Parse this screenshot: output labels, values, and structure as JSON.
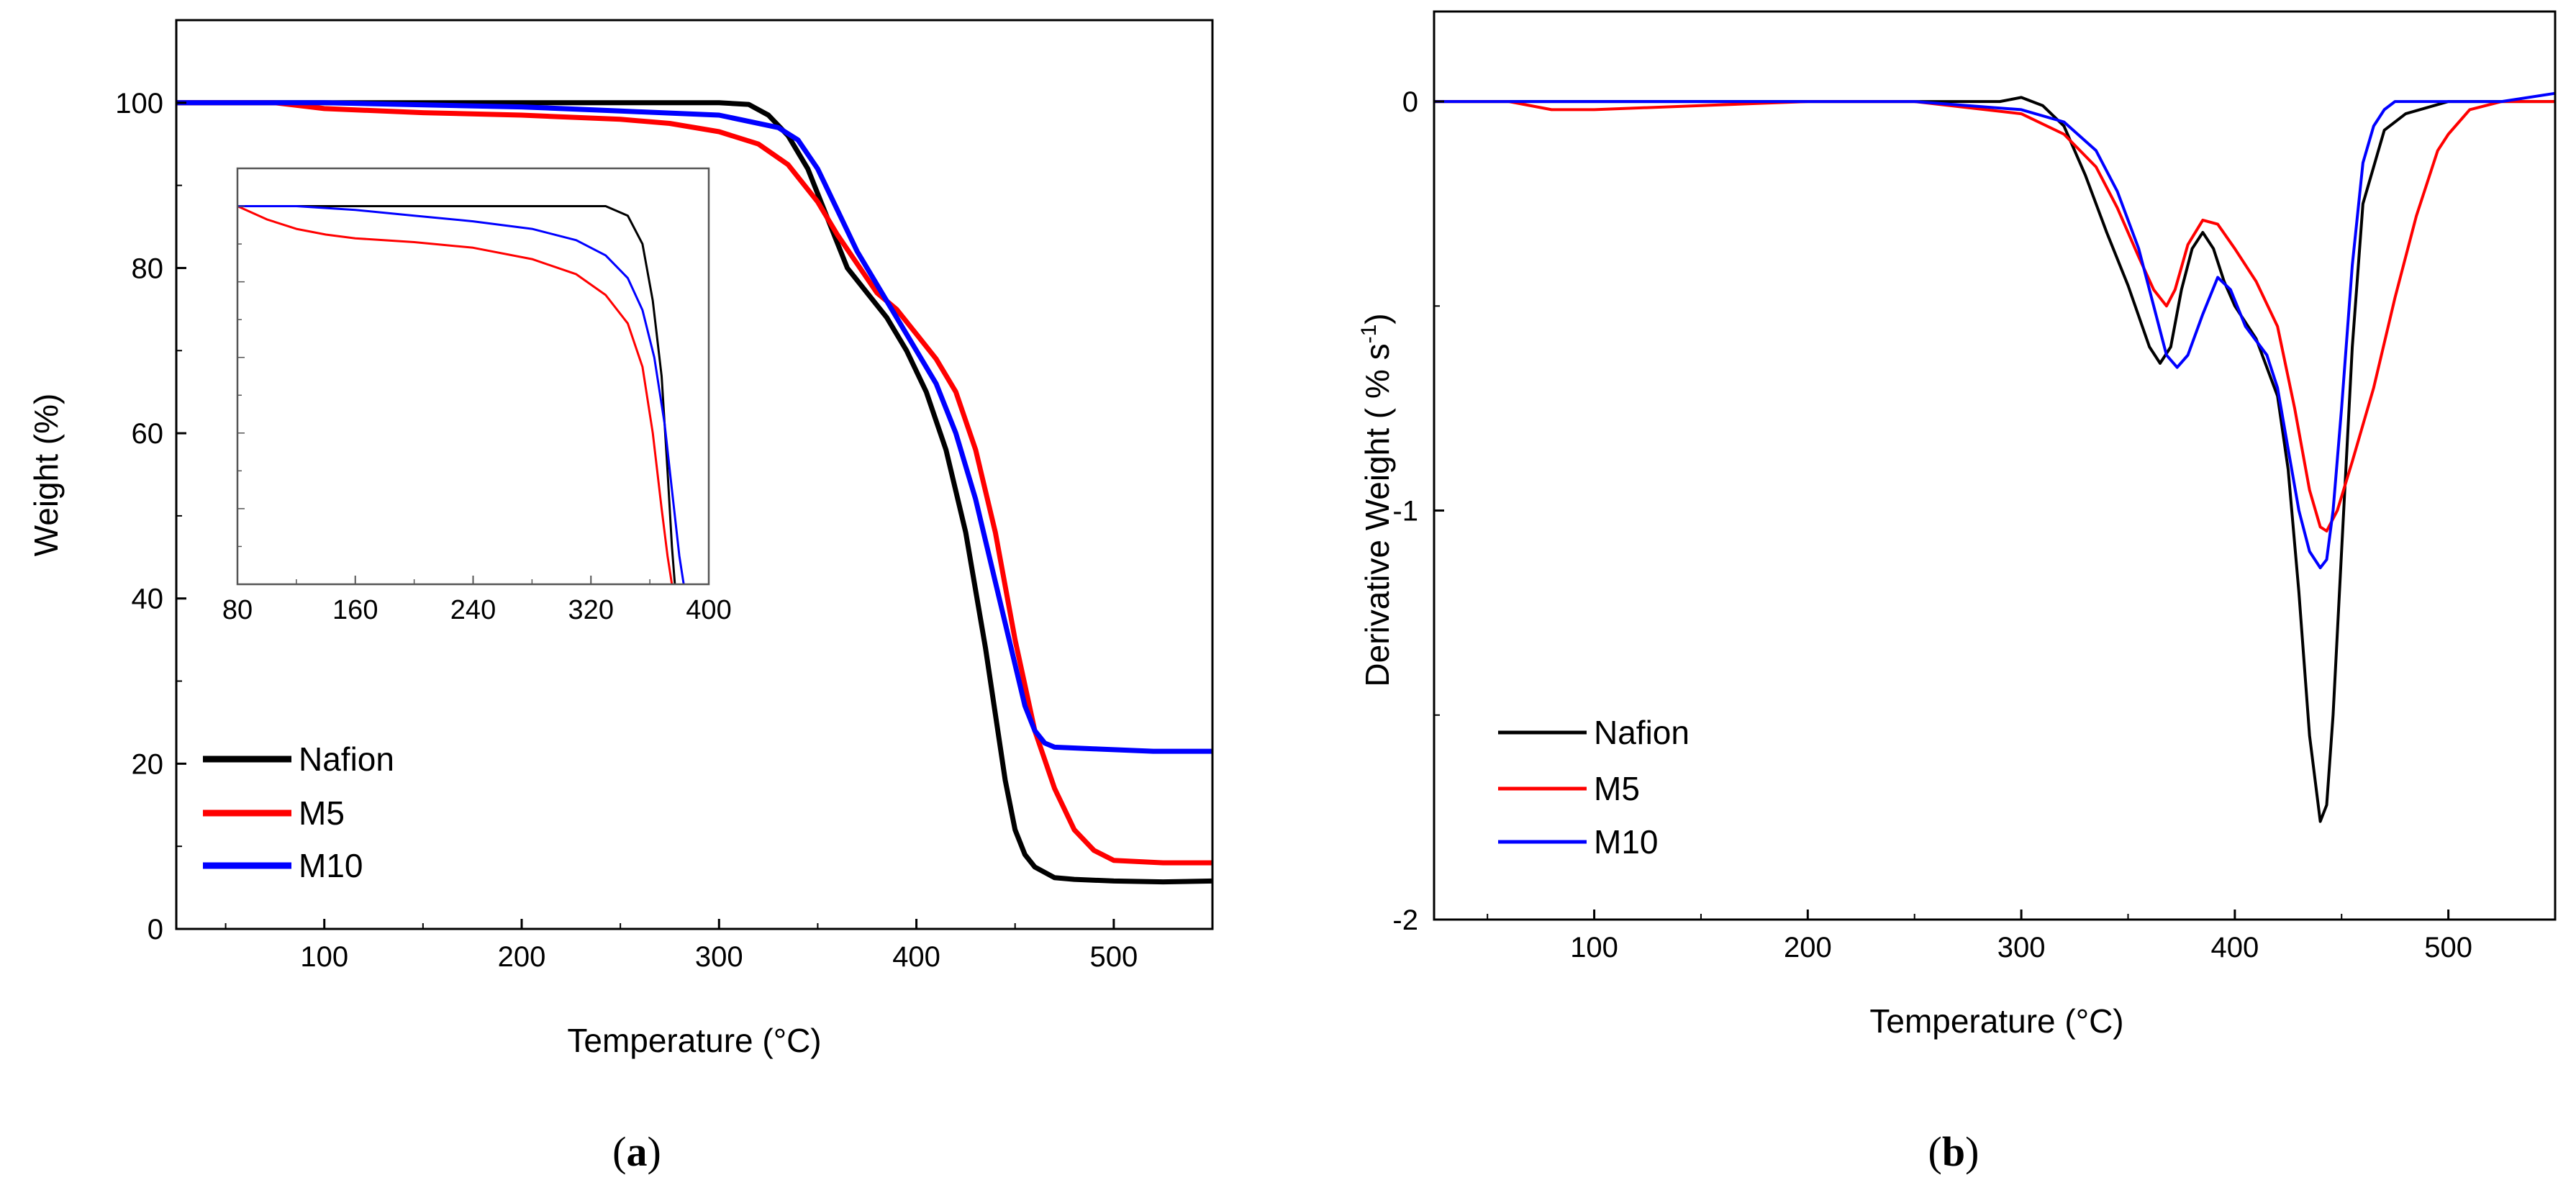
{
  "panel_a": {
    "caption_open": "(",
    "caption_letter": "a",
    "caption_close": ")",
    "chart_data": {
      "type": "line",
      "title": "",
      "xlabel": "Temperature (°C)",
      "ylabel": "Weight (%)",
      "xlim": [
        25,
        550
      ],
      "ylim": [
        0,
        110
      ],
      "xticks": [
        100,
        200,
        300,
        400,
        500
      ],
      "xtick_labels": [
        "100",
        "200",
        "300",
        "400",
        "500"
      ],
      "yticks": [
        0,
        20,
        40,
        60,
        80,
        100
      ],
      "ytick_labels": [
        "0",
        "20",
        "40",
        "60",
        "80",
        "100"
      ],
      "legend": [
        "Nafion",
        "M5",
        "M10"
      ],
      "legend_position": "lower-left",
      "series": [
        {
          "name": "Nafion",
          "color": "#000000",
          "x": [
            25,
            100,
            200,
            300,
            315,
            325,
            335,
            345,
            355,
            365,
            375,
            385,
            395,
            405,
            415,
            425,
            435,
            440,
            445,
            450,
            455,
            460,
            470,
            480,
            500,
            525,
            550
          ],
          "y": [
            100,
            100,
            100,
            100,
            99.8,
            98.5,
            96,
            92,
            86,
            80,
            77,
            74,
            70,
            65,
            58,
            48,
            34,
            26,
            18,
            12,
            9,
            7.5,
            6.2,
            6,
            5.8,
            5.7,
            5.8
          ]
        },
        {
          "name": "M5",
          "color": "#ff0000",
          "x": [
            25,
            75,
            100,
            150,
            200,
            250,
            275,
            300,
            320,
            335,
            350,
            360,
            370,
            380,
            390,
            400,
            410,
            420,
            430,
            440,
            450,
            460,
            470,
            480,
            490,
            500,
            525,
            550
          ],
          "y": [
            100,
            100,
            99.3,
            98.8,
            98.5,
            98,
            97.5,
            96.5,
            95,
            92.5,
            88,
            84,
            80.5,
            77,
            75,
            72,
            69,
            65,
            58,
            48,
            35,
            24,
            17,
            12,
            9.5,
            8.3,
            8,
            8
          ]
        },
        {
          "name": "M10",
          "color": "#0000ff",
          "x": [
            25,
            100,
            200,
            250,
            300,
            330,
            340,
            350,
            360,
            370,
            380,
            390,
            400,
            410,
            420,
            430,
            440,
            450,
            455,
            460,
            465,
            470,
            490,
            520,
            550
          ],
          "y": [
            100,
            100,
            99.5,
            99,
            98.5,
            97,
            95.5,
            92,
            87,
            82,
            78,
            74,
            70,
            66,
            60,
            52,
            42,
            32,
            27,
            24,
            22.5,
            22,
            21.8,
            21.5,
            21.5
          ]
        }
      ],
      "inset": {
        "type": "line",
        "xlim": [
          80,
          400
        ],
        "xticks": [
          80,
          160,
          240,
          320,
          400
        ],
        "xtick_labels": [
          "80",
          "160",
          "240",
          "320",
          "400"
        ],
        "ylim": [
          80,
          102
        ],
        "series": [
          {
            "name": "Nafion",
            "color": "#000000",
            "x": [
              80,
              150,
              200,
              250,
              300,
              330,
              345,
              355,
              362,
              368,
              372,
              375,
              377
            ],
            "y": [
              100,
              100,
              100,
              100,
              100,
              100,
              99.5,
              98,
              95,
              91,
              86,
              82,
              80
            ]
          },
          {
            "name": "M5",
            "color": "#ff0000",
            "x": [
              80,
              100,
              120,
              140,
              160,
              200,
              240,
              280,
              310,
              330,
              345,
              355,
              362,
              368,
              372,
              375
            ],
            "y": [
              100,
              99.3,
              98.8,
              98.5,
              98.3,
              98.1,
              97.8,
              97.2,
              96.4,
              95.3,
              93.8,
              91.5,
              88,
              84,
              81.5,
              80
            ]
          },
          {
            "name": "M10",
            "color": "#0000ff",
            "x": [
              80,
              120,
              160,
              200,
              240,
              280,
              310,
              330,
              345,
              355,
              363,
              370,
              375,
              380,
              383
            ],
            "y": [
              100,
              100,
              99.8,
              99.5,
              99.2,
              98.8,
              98.2,
              97.4,
              96.2,
              94.5,
              92,
              88.5,
              85,
              81.5,
              80
            ]
          }
        ]
      }
    }
  },
  "panel_b": {
    "caption_open": "(",
    "caption_letter": "b",
    "caption_close": ")",
    "chart_data": {
      "type": "line",
      "title": "",
      "xlabel": "Temperature (°C)",
      "ylabel": "Derivative Weight ( % s",
      "ylabel_sup": "-1",
      "ylabel_end": ")",
      "xlim": [
        25,
        550
      ],
      "ylim": [
        -2,
        0.22
      ],
      "xticks": [
        100,
        200,
        300,
        400,
        500
      ],
      "xtick_labels": [
        "100",
        "200",
        "300",
        "400",
        "500"
      ],
      "yticks": [
        -2,
        -1,
        0
      ],
      "ytick_labels": [
        "-2",
        "-1",
        "0"
      ],
      "legend": [
        "Nafion",
        "M5",
        "M10"
      ],
      "legend_position": "lower-left",
      "series": [
        {
          "name": "Nafion",
          "color": "#000000",
          "x": [
            25,
            100,
            200,
            290,
            300,
            310,
            320,
            330,
            340,
            350,
            360,
            365,
            370,
            375,
            380,
            385,
            390,
            395,
            400,
            410,
            420,
            425,
            430,
            435,
            440,
            443,
            446,
            450,
            455,
            460,
            470,
            480,
            500,
            525,
            550
          ],
          "y": [
            0,
            0,
            0,
            0,
            0.01,
            -0.01,
            -0.06,
            -0.18,
            -0.32,
            -0.45,
            -0.6,
            -0.64,
            -0.6,
            -0.46,
            -0.36,
            -0.32,
            -0.36,
            -0.44,
            -0.5,
            -0.58,
            -0.72,
            -0.9,
            -1.2,
            -1.55,
            -1.76,
            -1.72,
            -1.5,
            -1.1,
            -0.6,
            -0.25,
            -0.07,
            -0.03,
            0,
            0,
            0
          ]
        },
        {
          "name": "M5",
          "color": "#ff0000",
          "x": [
            25,
            60,
            80,
            100,
            150,
            200,
            250,
            300,
            320,
            335,
            345,
            355,
            362,
            368,
            372,
            378,
            385,
            392,
            400,
            410,
            420,
            428,
            435,
            440,
            443,
            448,
            455,
            465,
            475,
            485,
            495,
            500,
            510,
            525,
            550
          ],
          "y": [
            0,
            0,
            -0.02,
            -0.02,
            -0.01,
            0,
            0,
            -0.03,
            -0.08,
            -0.16,
            -0.26,
            -0.38,
            -0.46,
            -0.5,
            -0.46,
            -0.35,
            -0.29,
            -0.3,
            -0.36,
            -0.44,
            -0.55,
            -0.75,
            -0.95,
            -1.04,
            -1.05,
            -1.0,
            -0.88,
            -0.7,
            -0.48,
            -0.28,
            -0.12,
            -0.08,
            -0.02,
            0,
            0
          ]
        },
        {
          "name": "M10",
          "color": "#0000ff",
          "x": [
            25,
            100,
            200,
            250,
            300,
            320,
            335,
            345,
            355,
            362,
            368,
            373,
            378,
            385,
            392,
            398,
            405,
            415,
            420,
            425,
            430,
            435,
            440,
            443,
            446,
            450,
            455,
            460,
            465,
            470,
            475,
            480,
            500,
            525,
            550
          ],
          "y": [
            0,
            0,
            0,
            0,
            -0.02,
            -0.05,
            -0.12,
            -0.22,
            -0.36,
            -0.5,
            -0.62,
            -0.65,
            -0.62,
            -0.52,
            -0.43,
            -0.46,
            -0.55,
            -0.62,
            -0.7,
            -0.85,
            -1.0,
            -1.1,
            -1.14,
            -1.12,
            -1.0,
            -0.75,
            -0.4,
            -0.15,
            -0.06,
            -0.02,
            0,
            0,
            0,
            0,
            0.02
          ]
        }
      ]
    }
  }
}
